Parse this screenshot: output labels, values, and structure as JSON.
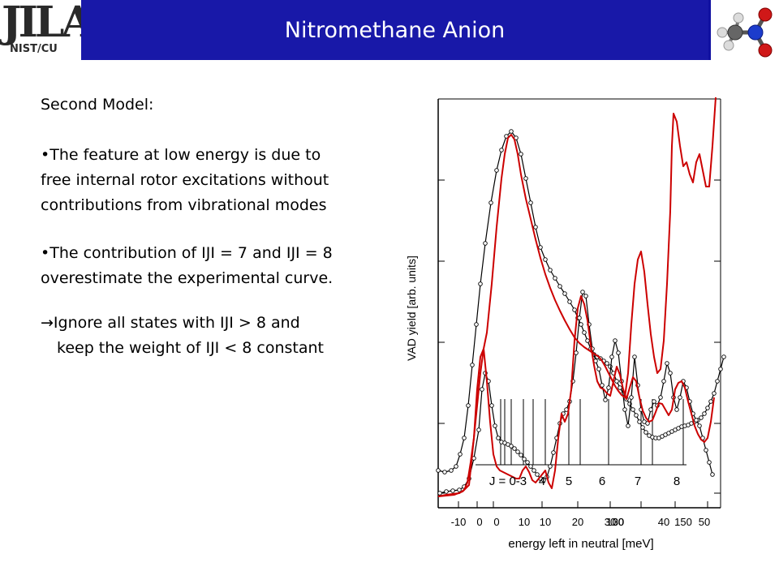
{
  "header": {
    "logo_text": "JILA",
    "logo_subtext": "NIST/CU",
    "title": "Nitromethane Anion",
    "title_bar_color": "#1818a8",
    "molecule_icon": "nitromethane-molecule-icon"
  },
  "body_text": {
    "heading": "Second Model:",
    "bullet1": [
      "•The feature at low energy is due to",
      "free internal rotor excitations without",
      "contributions from vibrational modes"
    ],
    "bullet2": [
      "•The contribution of IJI = 7 and   IJI = 8",
      "overestimate the experimental curve."
    ],
    "conclusion_arrow": "→",
    "conclusion_line1": "Ignore all states with IJI > 8 and",
    "conclusion_line2": "keep the weight of IJI < 8 constant"
  },
  "chart_data": {
    "type": "line",
    "xlabel": "energy left in neutral [meV]",
    "ylabel": "VAD yield [arb. units]",
    "x_tick_labels": [
      "-10",
      "0",
      "0",
      "10",
      "10",
      "20",
      "30",
      "100",
      "30",
      "40",
      "150",
      "50"
    ],
    "j_labels": [
      "J = 0-3",
      "4",
      "5",
      "6",
      "7",
      "8"
    ],
    "j_stick_positions": [
      617,
      622,
      630,
      645,
      657,
      672,
      701,
      715,
      750,
      790,
      804,
      842
    ],
    "j_stick_heights": [
      492,
      492,
      492,
      492,
      492,
      492,
      492,
      492,
      492,
      492,
      492,
      492
    ],
    "series": [
      {
        "color": "#000000",
        "marker": "open-circle",
        "values": [
          [
            540,
            580
          ],
          [
            548,
            582
          ],
          [
            556,
            580
          ],
          [
            562,
            575
          ],
          [
            567,
            560
          ],
          [
            572,
            540
          ],
          [
            577,
            500
          ],
          [
            582,
            450
          ],
          [
            587,
            400
          ],
          [
            592,
            350
          ],
          [
            598,
            300
          ],
          [
            605,
            250
          ],
          [
            612,
            210
          ],
          [
            618,
            185
          ],
          [
            624,
            168
          ],
          [
            630,
            162
          ],
          [
            636,
            170
          ],
          [
            642,
            190
          ],
          [
            648,
            220
          ],
          [
            654,
            250
          ],
          [
            660,
            280
          ],
          [
            666,
            305
          ],
          [
            672,
            320
          ],
          [
            678,
            333
          ],
          [
            684,
            343
          ],
          [
            690,
            353
          ],
          [
            696,
            362
          ],
          [
            702,
            372
          ],
          [
            708,
            382
          ],
          [
            712,
            392
          ],
          [
            716,
            400
          ],
          [
            720,
            410
          ],
          [
            724,
            420
          ],
          [
            728,
            430
          ],
          [
            732,
            437
          ],
          [
            736,
            440
          ],
          [
            740,
            442
          ],
          [
            744,
            445
          ],
          [
            748,
            448
          ],
          [
            752,
            452
          ],
          [
            756,
            460
          ],
          [
            760,
            470
          ],
          [
            764,
            478
          ],
          [
            768,
            485
          ],
          [
            772,
            492
          ],
          [
            776,
            498
          ],
          [
            780,
            505
          ],
          [
            784,
            512
          ],
          [
            788,
            520
          ],
          [
            792,
            527
          ],
          [
            796,
            533
          ],
          [
            800,
            537
          ],
          [
            804,
            539
          ],
          [
            808,
            540
          ],
          [
            812,
            540
          ],
          [
            816,
            538
          ],
          [
            820,
            536
          ],
          [
            824,
            534
          ],
          [
            828,
            532
          ],
          [
            832,
            530
          ],
          [
            836,
            528
          ],
          [
            840,
            526
          ],
          [
            844,
            525
          ],
          [
            848,
            524
          ],
          [
            852,
            522
          ],
          [
            856,
            520
          ],
          [
            860,
            518
          ],
          [
            864,
            515
          ],
          [
            868,
            510
          ],
          [
            872,
            503
          ],
          [
            876,
            495
          ],
          [
            880,
            485
          ],
          [
            884,
            470
          ],
          [
            888,
            455
          ],
          [
            892,
            440
          ]
        ]
      },
      {
        "color": "#000000",
        "marker": "open-circle",
        "values": [
          [
            542,
            608
          ],
          [
            550,
            606
          ],
          [
            558,
            605
          ],
          [
            566,
            604
          ],
          [
            572,
            600
          ],
          [
            578,
            590
          ],
          [
            584,
            565
          ],
          [
            590,
            530
          ],
          [
            594,
            480
          ],
          [
            598,
            460
          ],
          [
            602,
            470
          ],
          [
            606,
            500
          ],
          [
            610,
            525
          ],
          [
            614,
            540
          ],
          [
            618,
            545
          ],
          [
            622,
            546
          ],
          [
            626,
            548
          ],
          [
            630,
            550
          ],
          [
            634,
            553
          ],
          [
            638,
            557
          ],
          [
            642,
            561
          ],
          [
            646,
            566
          ],
          [
            650,
            570
          ],
          [
            654,
            575
          ],
          [
            658,
            580
          ],
          [
            662,
            585
          ],
          [
            666,
            590
          ],
          [
            670,
            592
          ],
          [
            674,
            588
          ],
          [
            678,
            575
          ],
          [
            682,
            558
          ],
          [
            686,
            540
          ],
          [
            690,
            522
          ],
          [
            694,
            510
          ],
          [
            698,
            505
          ],
          [
            702,
            495
          ],
          [
            706,
            470
          ],
          [
            710,
            435
          ],
          [
            714,
            392
          ],
          [
            718,
            360
          ],
          [
            722,
            365
          ],
          [
            726,
            400
          ],
          [
            730,
            430
          ],
          [
            734,
            445
          ],
          [
            738,
            455
          ],
          [
            742,
            475
          ],
          [
            746,
            493
          ],
          [
            750,
            478
          ],
          [
            754,
            440
          ],
          [
            758,
            420
          ],
          [
            762,
            435
          ],
          [
            766,
            470
          ],
          [
            770,
            505
          ],
          [
            774,
            525
          ],
          [
            778,
            490
          ],
          [
            782,
            440
          ],
          [
            786,
            475
          ],
          [
            790,
            505
          ],
          [
            794,
            520
          ],
          [
            798,
            522
          ],
          [
            802,
            505
          ],
          [
            806,
            495
          ],
          [
            810,
            500
          ],
          [
            814,
            490
          ],
          [
            818,
            470
          ],
          [
            822,
            448
          ],
          [
            826,
            460
          ],
          [
            830,
            490
          ],
          [
            834,
            505
          ],
          [
            838,
            490
          ],
          [
            842,
            470
          ],
          [
            846,
            478
          ],
          [
            850,
            495
          ],
          [
            854,
            510
          ],
          [
            858,
            518
          ],
          [
            862,
            525
          ],
          [
            866,
            540
          ],
          [
            870,
            555
          ],
          [
            874,
            570
          ],
          [
            878,
            585
          ]
        ]
      },
      {
        "color": "#cc0000",
        "marker": "none",
        "values": [
          [
            540,
            612
          ],
          [
            550,
            610
          ],
          [
            558,
            609
          ],
          [
            566,
            608
          ],
          [
            572,
            604
          ],
          [
            576,
            595
          ],
          [
            580,
            570
          ],
          [
            584,
            540
          ],
          [
            588,
            500
          ],
          [
            592,
            460
          ],
          [
            596,
            430
          ],
          [
            600,
            410
          ],
          [
            606,
            350
          ],
          [
            612,
            280
          ],
          [
            618,
            220
          ],
          [
            622,
            190
          ],
          [
            626,
            170
          ],
          [
            630,
            166
          ],
          [
            634,
            172
          ],
          [
            638,
            190
          ],
          [
            642,
            215
          ],
          [
            648,
            245
          ],
          [
            654,
            270
          ],
          [
            660,
            295
          ],
          [
            666,
            318
          ],
          [
            672,
            338
          ],
          [
            678,
            355
          ],
          [
            684,
            370
          ],
          [
            690,
            383
          ],
          [
            696,
            395
          ],
          [
            702,
            406
          ],
          [
            708,
            416
          ],
          [
            714,
            423
          ],
          [
            720,
            428
          ],
          [
            726,
            432
          ],
          [
            732,
            436
          ],
          [
            738,
            440
          ],
          [
            742,
            445
          ],
          [
            746,
            452
          ],
          [
            750,
            460
          ],
          [
            754,
            468
          ],
          [
            758,
            476
          ],
          [
            762,
            482
          ],
          [
            766,
            487
          ],
          [
            770,
            490
          ],
          [
            774,
            460
          ],
          [
            778,
            400
          ],
          [
            782,
            350
          ],
          [
            786,
            320
          ],
          [
            790,
            310
          ],
          [
            794,
            335
          ],
          [
            798,
            375
          ],
          [
            802,
            412
          ],
          [
            806,
            440
          ],
          [
            810,
            460
          ],
          [
            814,
            455
          ],
          [
            818,
            420
          ],
          [
            822,
            350
          ],
          [
            826,
            260
          ],
          [
            828,
            180
          ],
          [
            830,
            140
          ],
          [
            834,
            150
          ],
          [
            838,
            180
          ],
          [
            842,
            205
          ],
          [
            846,
            200
          ],
          [
            850,
            215
          ],
          [
            854,
            225
          ],
          [
            858,
            200
          ],
          [
            862,
            190
          ],
          [
            866,
            210
          ],
          [
            870,
            230
          ],
          [
            874,
            230
          ],
          [
            878,
            180
          ],
          [
            882,
            120
          ]
        ]
      },
      {
        "color": "#cc0000",
        "marker": "none",
        "values": [
          [
            540,
            612
          ],
          [
            550,
            611
          ],
          [
            560,
            610
          ],
          [
            570,
            606
          ],
          [
            578,
            598
          ],
          [
            584,
            540
          ],
          [
            588,
            480
          ],
          [
            592,
            440
          ],
          [
            596,
            430
          ],
          [
            600,
            470
          ],
          [
            604,
            520
          ],
          [
            608,
            560
          ],
          [
            612,
            575
          ],
          [
            616,
            580
          ],
          [
            620,
            582
          ],
          [
            624,
            584
          ],
          [
            628,
            586
          ],
          [
            632,
            588
          ],
          [
            636,
            590
          ],
          [
            640,
            590
          ],
          [
            644,
            580
          ],
          [
            648,
            575
          ],
          [
            652,
            582
          ],
          [
            656,
            592
          ],
          [
            660,
            595
          ],
          [
            664,
            590
          ],
          [
            668,
            585
          ],
          [
            672,
            580
          ],
          [
            676,
            595
          ],
          [
            680,
            602
          ],
          [
            684,
            580
          ],
          [
            688,
            540
          ],
          [
            692,
            510
          ],
          [
            696,
            520
          ],
          [
            700,
            510
          ],
          [
            704,
            480
          ],
          [
            708,
            420
          ],
          [
            712,
            380
          ],
          [
            716,
            365
          ],
          [
            720,
            375
          ],
          [
            724,
            395
          ],
          [
            728,
            425
          ],
          [
            732,
            450
          ],
          [
            736,
            470
          ],
          [
            740,
            478
          ],
          [
            744,
            480
          ],
          [
            748,
            485
          ],
          [
            752,
            488
          ],
          [
            756,
            470
          ],
          [
            760,
            452
          ],
          [
            764,
            462
          ],
          [
            768,
            480
          ],
          [
            772,
            492
          ],
          [
            776,
            478
          ],
          [
            780,
            465
          ],
          [
            784,
            470
          ],
          [
            788,
            490
          ],
          [
            792,
            506
          ],
          [
            796,
            515
          ],
          [
            800,
            520
          ],
          [
            804,
            518
          ],
          [
            808,
            508
          ],
          [
            812,
            497
          ],
          [
            816,
            498
          ],
          [
            820,
            505
          ],
          [
            824,
            512
          ],
          [
            828,
            505
          ],
          [
            832,
            480
          ],
          [
            836,
            472
          ],
          [
            840,
            470
          ],
          [
            844,
            478
          ],
          [
            848,
            495
          ],
          [
            852,
            510
          ],
          [
            856,
            525
          ],
          [
            860,
            535
          ],
          [
            864,
            542
          ],
          [
            868,
            545
          ],
          [
            872,
            540
          ],
          [
            876,
            520
          ],
          [
            880,
            490
          ]
        ]
      }
    ]
  }
}
